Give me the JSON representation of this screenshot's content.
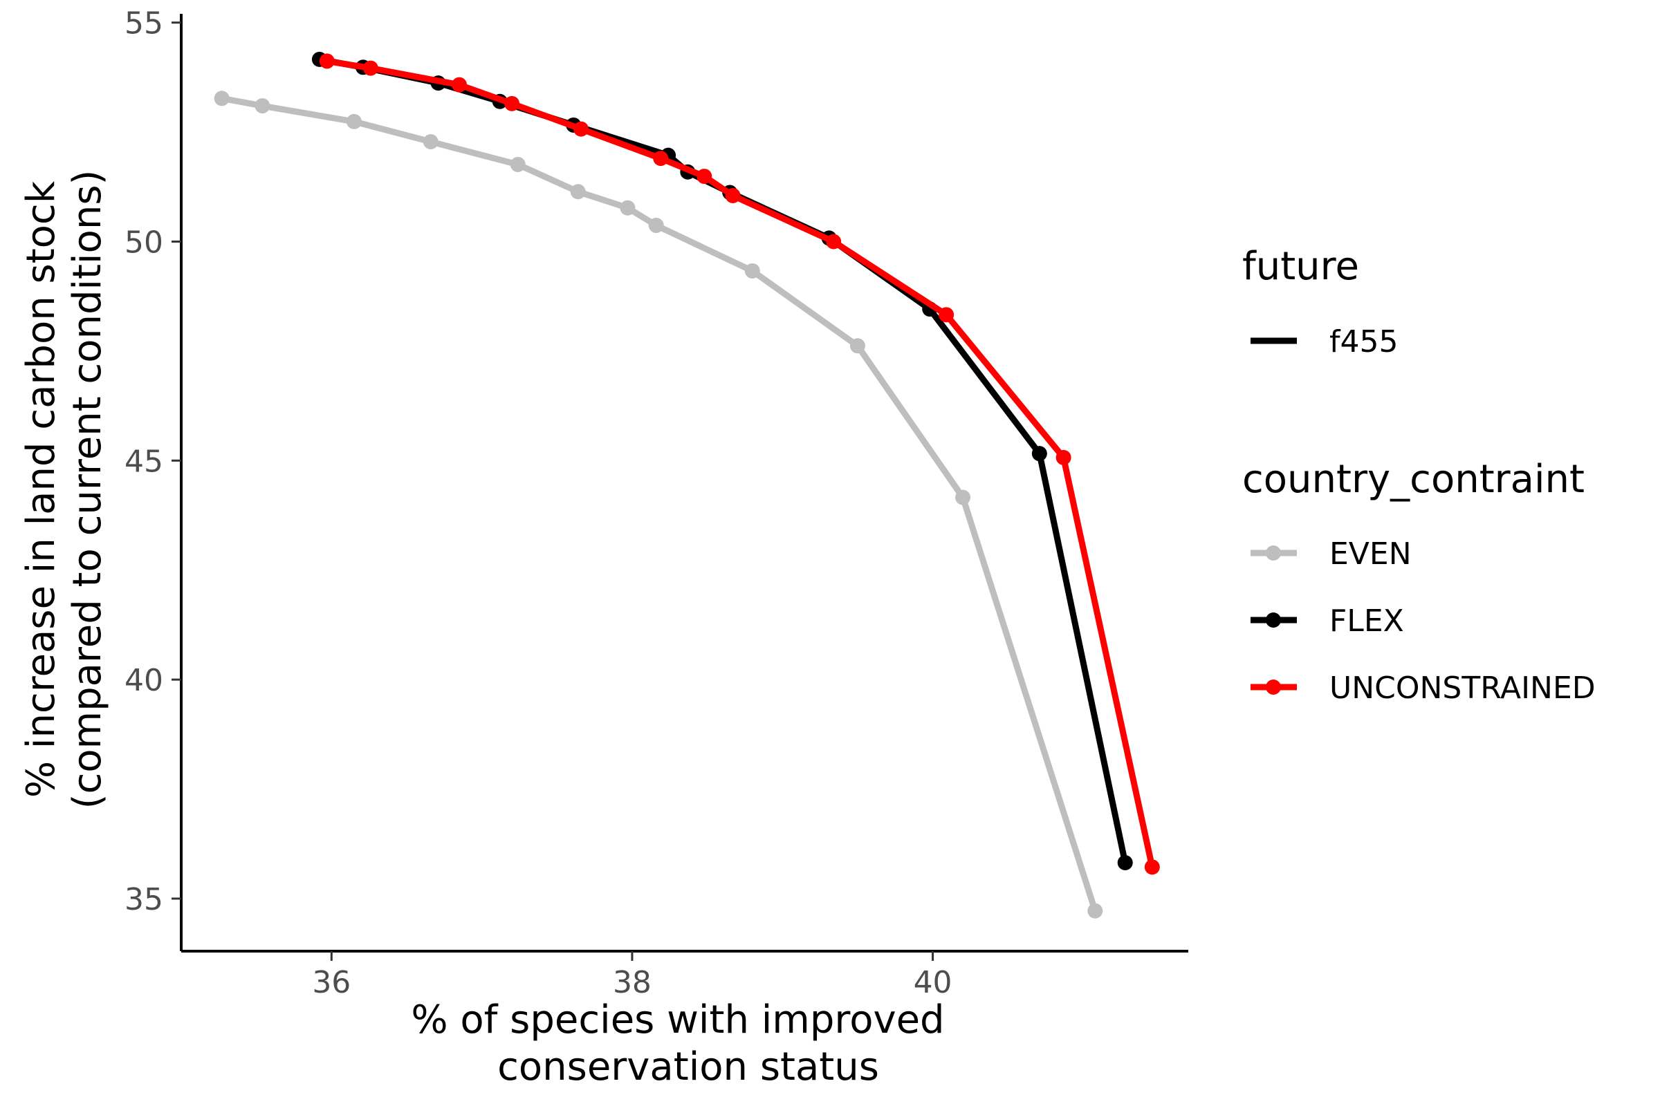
{
  "chart_data": {
    "type": "line",
    "xlabel": [
      "% of species with improved",
      "conservation status"
    ],
    "ylabel": [
      "% increase in land carbon stock",
      "(compared to current conditions)"
    ],
    "xlim": [
      35,
      41.7
    ],
    "ylim": [
      33.8,
      55.2
    ],
    "x_ticks": [
      36,
      38,
      40
    ],
    "y_ticks": [
      35,
      40,
      45,
      50,
      55
    ],
    "grid": false,
    "legend_position": "right",
    "legend": {
      "future_title": "future",
      "future_entries": [
        {
          "label": "f455",
          "color": "#000000"
        }
      ],
      "constraint_title": "country_contraint",
      "constraint_entries": [
        {
          "label": "EVEN",
          "color": "#bebebe"
        },
        {
          "label": "FLEX",
          "color": "#000000"
        },
        {
          "label": "UNCONSTRAINED",
          "color": "#ff0000"
        }
      ]
    },
    "series": [
      {
        "name": "EVEN",
        "color": "#bebebe",
        "x": [
          35.27,
          35.54,
          36.15,
          36.66,
          37.24,
          37.64,
          37.97,
          38.16,
          38.8,
          39.5,
          40.2,
          41.08
        ],
        "y": [
          53.27,
          53.1,
          52.74,
          52.28,
          51.76,
          51.14,
          50.77,
          50.37,
          49.33,
          47.62,
          44.16,
          34.72
        ]
      },
      {
        "name": "FLEX",
        "color": "#000000",
        "x": [
          35.92,
          36.21,
          36.71,
          37.12,
          37.61,
          38.24,
          38.37,
          38.65,
          39.31,
          39.98,
          40.71,
          41.28
        ],
        "y": [
          54.16,
          53.98,
          53.62,
          53.2,
          52.66,
          51.97,
          51.59,
          51.12,
          50.08,
          48.46,
          45.16,
          35.82
        ]
      },
      {
        "name": "UNCONSTRAINED",
        "color": "#ff0000",
        "x": [
          35.97,
          36.26,
          36.85,
          37.2,
          37.66,
          38.19,
          38.48,
          38.67,
          39.34,
          40.09,
          40.87,
          41.46
        ],
        "y": [
          54.12,
          53.96,
          53.58,
          53.15,
          52.57,
          51.9,
          51.49,
          51.05,
          50.0,
          48.33,
          45.07,
          35.72
        ]
      }
    ]
  }
}
